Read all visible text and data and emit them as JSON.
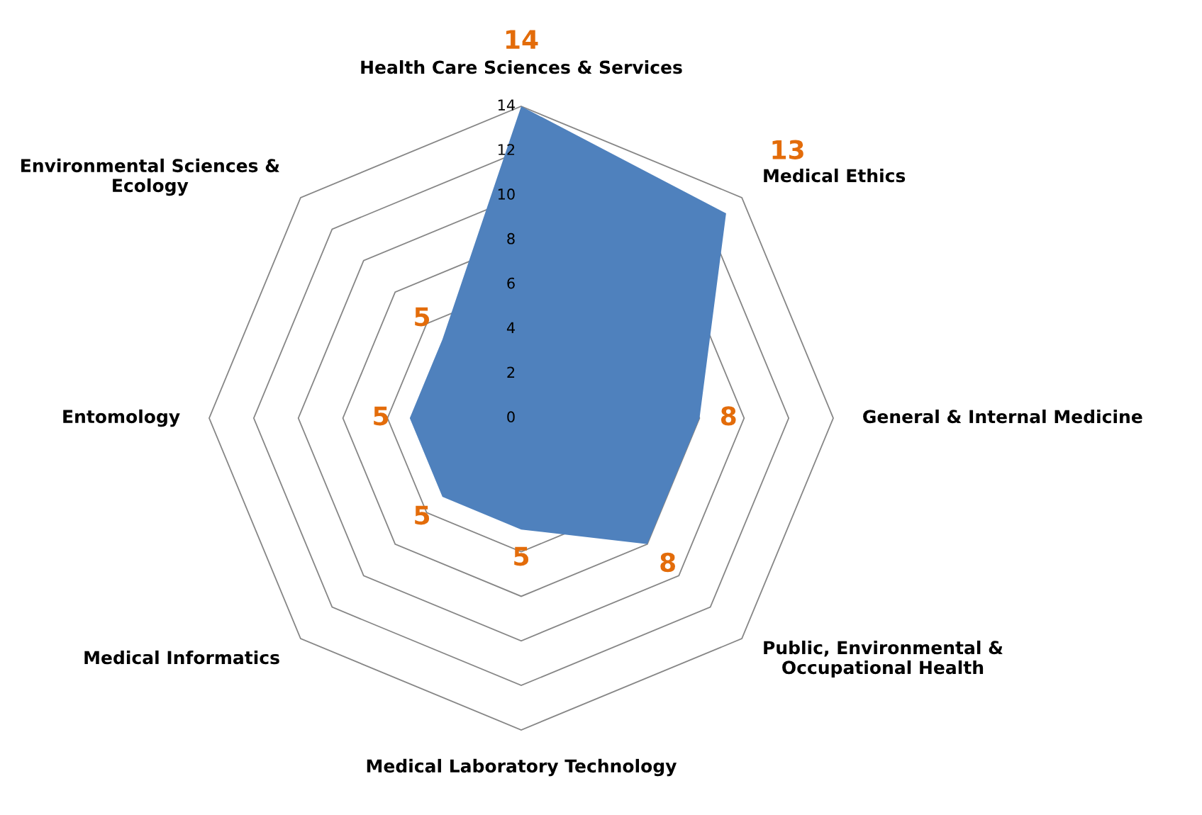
{
  "chart_data": {
    "type": "radar",
    "categories": [
      "Health Care Sciences & Services",
      "Medical Ethics",
      "General & Internal Medicine",
      "Public, Environmental &\nOccupational Health",
      "Medical Laboratory Technology",
      "Medical Informatics",
      "Entomology",
      "Environmental Sciences &\nEcology"
    ],
    "series": [
      {
        "color": "#4f81bd",
        "values": [
          14,
          13,
          8,
          8,
          5,
          5,
          5,
          5
        ]
      }
    ],
    "ylim": [
      0,
      14
    ],
    "yticks": [
      0,
      2,
      4,
      6,
      8,
      10,
      12,
      14
    ],
    "data_labels": true,
    "grid": true
  }
}
